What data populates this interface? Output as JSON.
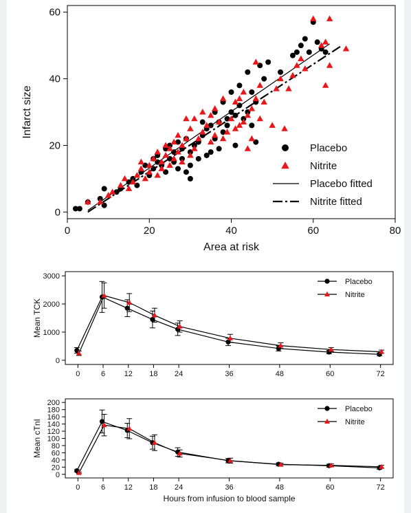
{
  "colors": {
    "placebo": "#000000",
    "nitrite": "#e8171b",
    "background": "#eef2f3",
    "panel": "#ffffff"
  },
  "chart_data": [
    {
      "type": "scatter",
      "title": "",
      "xlabel": "Area at risk",
      "ylabel": "Infarct size",
      "xlim": [
        0,
        80
      ],
      "ylim": [
        -2,
        62
      ],
      "xticks": [
        0,
        20,
        40,
        60,
        80
      ],
      "yticks": [
        0,
        20,
        40,
        60
      ],
      "legend_position": "bottom-right",
      "legend": [
        "Placebo",
        "Nitrite",
        "Placebo fitted",
        "Nitrite fitted"
      ],
      "series": [
        {
          "name": "Placebo",
          "marker": "circle",
          "points": [
            [
              2,
              1
            ],
            [
              3,
              1
            ],
            [
              5,
              3
            ],
            [
              8,
              4
            ],
            [
              9,
              2
            ],
            [
              9,
              7
            ],
            [
              12,
              6
            ],
            [
              13,
              7
            ],
            [
              15,
              9
            ],
            [
              16,
              10
            ],
            [
              17,
              8
            ],
            [
              18,
              12
            ],
            [
              19,
              14
            ],
            [
              20,
              11
            ],
            [
              21,
              13
            ],
            [
              21,
              16
            ],
            [
              22,
              15
            ],
            [
              22,
              17
            ],
            [
              23,
              14
            ],
            [
              24,
              12
            ],
            [
              24,
              19
            ],
            [
              25,
              16
            ],
            [
              25,
              20
            ],
            [
              26,
              15
            ],
            [
              26,
              18
            ],
            [
              27,
              13
            ],
            [
              27,
              21
            ],
            [
              28,
              16
            ],
            [
              28,
              19
            ],
            [
              29,
              12
            ],
            [
              29,
              22
            ],
            [
              30,
              10
            ],
            [
              30,
              14
            ],
            [
              30,
              18
            ],
            [
              31,
              20
            ],
            [
              32,
              16
            ],
            [
              32,
              21
            ],
            [
              33,
              23
            ],
            [
              33,
              27
            ],
            [
              34,
              17
            ],
            [
              34,
              25
            ],
            [
              35,
              18
            ],
            [
              35,
              26
            ],
            [
              36,
              22
            ],
            [
              36,
              30
            ],
            [
              37,
              19
            ],
            [
              37,
              27
            ],
            [
              38,
              24
            ],
            [
              38,
              33
            ],
            [
              39,
              26
            ],
            [
              39,
              28
            ],
            [
              40,
              30
            ],
            [
              40,
              36
            ],
            [
              41,
              20
            ],
            [
              41,
              29
            ],
            [
              42,
              32
            ],
            [
              42,
              38
            ],
            [
              43,
              28
            ],
            [
              44,
              30
            ],
            [
              44,
              42
            ],
            [
              45,
              26
            ],
            [
              45,
              36
            ],
            [
              46,
              21
            ],
            [
              46,
              33
            ],
            [
              47,
              44
            ],
            [
              48,
              40
            ],
            [
              49,
              45
            ],
            [
              52,
              42
            ],
            [
              55,
              47
            ],
            [
              56,
              48
            ],
            [
              57,
              50
            ],
            [
              58,
              52
            ],
            [
              59,
              48
            ],
            [
              60,
              57
            ],
            [
              61,
              51
            ],
            [
              62,
              49
            ],
            [
              63,
              48
            ]
          ]
        },
        {
          "name": "Nitrite",
          "marker": "triangle",
          "points": [
            [
              5,
              3
            ],
            [
              8,
              3
            ],
            [
              10,
              5
            ],
            [
              11,
              6
            ],
            [
              13,
              8
            ],
            [
              14,
              10
            ],
            [
              15,
              7
            ],
            [
              16,
              9
            ],
            [
              17,
              11
            ],
            [
              18,
              13
            ],
            [
              18,
              15
            ],
            [
              19,
              10
            ],
            [
              20,
              12
            ],
            [
              20,
              14
            ],
            [
              21,
              16
            ],
            [
              22,
              11
            ],
            [
              22,
              18
            ],
            [
              23,
              13
            ],
            [
              23,
              15
            ],
            [
              24,
              17
            ],
            [
              24,
              20
            ],
            [
              25,
              14
            ],
            [
              25,
              19
            ],
            [
              26,
              16
            ],
            [
              26,
              21
            ],
            [
              27,
              18
            ],
            [
              27,
              23
            ],
            [
              28,
              15
            ],
            [
              28,
              20
            ],
            [
              29,
              22
            ],
            [
              29,
              28
            ],
            [
              30,
              17
            ],
            [
              30,
              25
            ],
            [
              31,
              19
            ],
            [
              31,
              28
            ],
            [
              32,
              22
            ],
            [
              33,
              24
            ],
            [
              33,
              30
            ],
            [
              34,
              26
            ],
            [
              35,
              21
            ],
            [
              35,
              29
            ],
            [
              36,
              23
            ],
            [
              36,
              31
            ],
            [
              37,
              27
            ],
            [
              38,
              22
            ],
            [
              38,
              34
            ],
            [
              39,
              24
            ],
            [
              40,
              28
            ],
            [
              41,
              25
            ],
            [
              41,
              33
            ],
            [
              42,
              26
            ],
            [
              42,
              34
            ],
            [
              43,
              27
            ],
            [
              43,
              36
            ],
            [
              44,
              29
            ],
            [
              44,
              19
            ],
            [
              45,
              22
            ],
            [
              45,
              31
            ],
            [
              46,
              34
            ],
            [
              46,
              45
            ],
            [
              47,
              28
            ],
            [
              47,
              38
            ],
            [
              48,
              33
            ],
            [
              50,
              26
            ],
            [
              51,
              37
            ],
            [
              52,
              40
            ],
            [
              53,
              25
            ],
            [
              54,
              37
            ],
            [
              55,
              41
            ],
            [
              56,
              44
            ],
            [
              57,
              46
            ],
            [
              58,
              43
            ],
            [
              60,
              58
            ],
            [
              62,
              50
            ],
            [
              63,
              38
            ],
            [
              63,
              51
            ],
            [
              64,
              58
            ],
            [
              64,
              44
            ],
            [
              68,
              49
            ]
          ]
        }
      ],
      "fitted": [
        {
          "name": "Placebo fitted",
          "style": "solid",
          "x": [
            5,
            64
          ],
          "y": [
            0.5,
            50.5
          ]
        },
        {
          "name": "Nitrite fitted",
          "style": "dash-dot",
          "x": [
            5,
            67
          ],
          "y": [
            0,
            50
          ]
        }
      ]
    },
    {
      "type": "line",
      "title": "",
      "xlabel": "",
      "ylabel": "Mean TCK",
      "x": [
        0,
        6,
        12,
        18,
        24,
        36,
        48,
        60,
        72
      ],
      "xlim": [
        -3,
        75
      ],
      "ylim": [
        -150,
        3150
      ],
      "xticks": [
        0,
        6,
        12,
        18,
        24,
        36,
        48,
        60,
        72
      ],
      "yticks": [
        0,
        1000,
        2000,
        3000
      ],
      "legend_position": "top-right",
      "series": [
        {
          "name": "Placebo",
          "values": [
            350,
            2250,
            1850,
            1450,
            1100,
            650,
            420,
            290,
            210
          ],
          "err": [
            100,
            550,
            300,
            300,
            220,
            130,
            90,
            60,
            50
          ]
        },
        {
          "name": "Nitrite",
          "values": [
            250,
            2300,
            2050,
            1600,
            1200,
            780,
            520,
            380,
            300
          ],
          "err": [
            80,
            450,
            320,
            250,
            200,
            140,
            100,
            70,
            60
          ]
        }
      ]
    },
    {
      "type": "line",
      "title": "",
      "xlabel": "Hours from infusion to blood sample",
      "ylabel": "Mean cTnI",
      "x": [
        0,
        6,
        12,
        18,
        24,
        36,
        48,
        60,
        72
      ],
      "xlim": [
        -3,
        75
      ],
      "ylim": [
        -10,
        210
      ],
      "xticks": [
        0,
        6,
        12,
        18,
        24,
        36,
        48,
        60,
        72
      ],
      "yticks": [
        0,
        20,
        40,
        60,
        80,
        100,
        120,
        140,
        160,
        180,
        200
      ],
      "legend_position": "top-right",
      "series": [
        {
          "name": "Placebo",
          "values": [
            10,
            147,
            122,
            88,
            62,
            38,
            28,
            24,
            18
          ],
          "err": [
            3,
            32,
            20,
            18,
            12,
            6,
            4,
            4,
            4
          ]
        },
        {
          "name": "Nitrite",
          "values": [
            4,
            137,
            127,
            88,
            58,
            38,
            27,
            25,
            21
          ],
          "err": [
            2,
            30,
            28,
            22,
            10,
            7,
            4,
            4,
            4
          ]
        }
      ]
    }
  ]
}
